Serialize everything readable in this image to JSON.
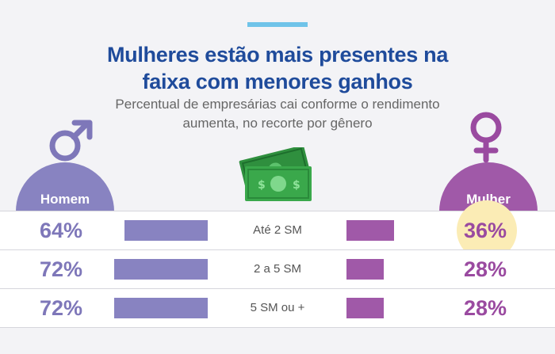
{
  "header": {
    "title_line1": "Mulheres estão mais presentes na",
    "title_line2": "faixa com menores ganhos",
    "subtitle_line1": "Percentual de empresárias cai conforme o rendimento",
    "subtitle_line2": "aumenta, no recorte por gênero"
  },
  "legend": {
    "male": "Homem",
    "female": "Mulher"
  },
  "colors": {
    "male": "#8883c1",
    "female": "#a059a8",
    "male_text": "#7e77b9",
    "female_text": "#9a4aa0",
    "title": "#1f4b9b",
    "accent": "#6fc3e9",
    "highlight": "#fbecb5",
    "money": "#37a449"
  },
  "icons": {
    "male": "male-symbol-icon",
    "female": "female-symbol-icon",
    "money": "money-bills-icon"
  },
  "chart_data": {
    "type": "bar",
    "title": "Mulheres estão mais presentes na faixa com menores ganhos",
    "subtitle": "Percentual de empresárias cai conforme o rendimento aumenta, no recorte por gênero",
    "categories": [
      "Até 2 SM",
      "2 a 5 SM",
      "5 SM ou +"
    ],
    "series": [
      {
        "name": "Homem",
        "values": [
          64,
          72,
          72
        ],
        "labels": [
          "64%",
          "72%",
          "72%"
        ]
      },
      {
        "name": "Mulher",
        "values": [
          36,
          28,
          28
        ],
        "labels": [
          "36%",
          "28%",
          "28%"
        ]
      }
    ],
    "unit": "%",
    "highlighted": {
      "series": "Mulher",
      "category": "Até 2 SM"
    }
  }
}
